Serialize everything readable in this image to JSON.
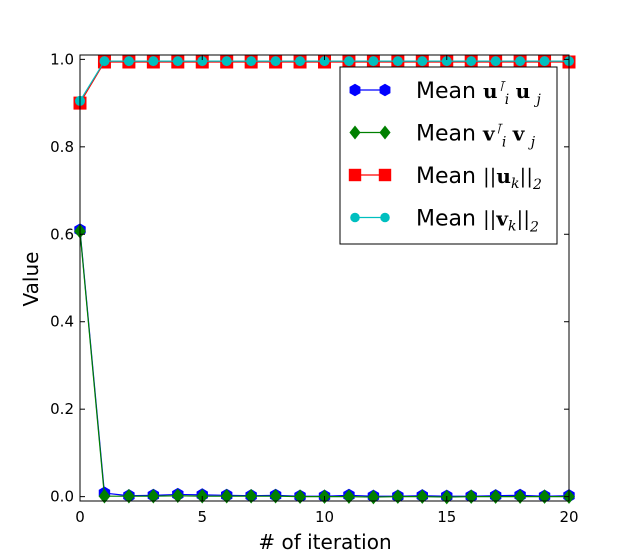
{
  "chart_data": {
    "type": "line",
    "title": "",
    "xlabel": "# of iteration",
    "ylabel": "Value",
    "xlim": [
      0,
      20
    ],
    "ylim": [
      -0.01,
      1.01
    ],
    "xticks": [
      "0",
      "5",
      "10",
      "15",
      "20"
    ],
    "yticks": [
      "0.0",
      "0.2",
      "0.4",
      "0.6",
      "0.8",
      "1.0"
    ],
    "grid": false,
    "legend_position": "upper-right",
    "x": [
      0,
      1,
      2,
      3,
      4,
      5,
      6,
      7,
      8,
      9,
      10,
      11,
      12,
      13,
      14,
      15,
      16,
      17,
      18,
      19,
      20
    ],
    "series": [
      {
        "name": "Mean u_i^T u_j",
        "legend_prefix": "Mean",
        "legend_math": {
          "vec": "u",
          "sub_i": "i",
          "sup": "⊺",
          "vec2": "u",
          "sub_j": "j"
        },
        "marker": "hexagon",
        "color": "#0000ff",
        "values": [
          0.61,
          0.008,
          0.002,
          0.003,
          0.005,
          0.004,
          0.003,
          0.002,
          0.003,
          0.001,
          0.001,
          0.003,
          0.001,
          0.001,
          0.002,
          0.001,
          0.001,
          0.002,
          0.003,
          0.001,
          0.002
        ]
      },
      {
        "name": "Mean v_i^T v_j",
        "legend_prefix": "Mean",
        "legend_math": {
          "vec": "v",
          "sub_i": "i",
          "sup": "⊺",
          "vec2": "v",
          "sub_j": "j"
        },
        "marker": "diamond",
        "color": "#008000",
        "values": [
          0.607,
          0.001,
          0.001,
          0.001,
          0.002,
          0.001,
          0.001,
          0.001,
          0.001,
          0.0,
          0.0,
          0.0,
          -0.001,
          0.0,
          0.0,
          -0.001,
          0.0,
          0.0,
          0.0,
          0.0,
          0.0
        ]
      },
      {
        "name": "Mean ||u_k||_2",
        "legend_prefix": "Mean",
        "legend_norm": {
          "vec": "u",
          "sub": "k",
          "norm_sub": "2"
        },
        "marker": "square",
        "color": "#ff0000",
        "values": [
          0.9,
          0.994,
          0.994,
          0.994,
          0.994,
          0.994,
          0.994,
          0.994,
          0.994,
          0.994,
          0.994,
          0.994,
          0.994,
          0.994,
          0.994,
          0.994,
          0.994,
          0.994,
          0.994,
          0.994,
          0.994
        ]
      },
      {
        "name": "Mean ||v_k||_2",
        "legend_prefix": "Mean",
        "legend_norm": {
          "vec": "v",
          "sub": "k",
          "norm_sub": "2"
        },
        "marker": "circle",
        "color": "#00bfbf",
        "values": [
          0.905,
          0.996,
          0.996,
          0.996,
          0.996,
          0.996,
          0.996,
          0.996,
          0.996,
          0.996,
          0.996,
          0.996,
          0.996,
          0.996,
          0.996,
          0.996,
          0.996,
          0.996,
          0.996,
          0.996,
          0.996
        ]
      }
    ]
  }
}
